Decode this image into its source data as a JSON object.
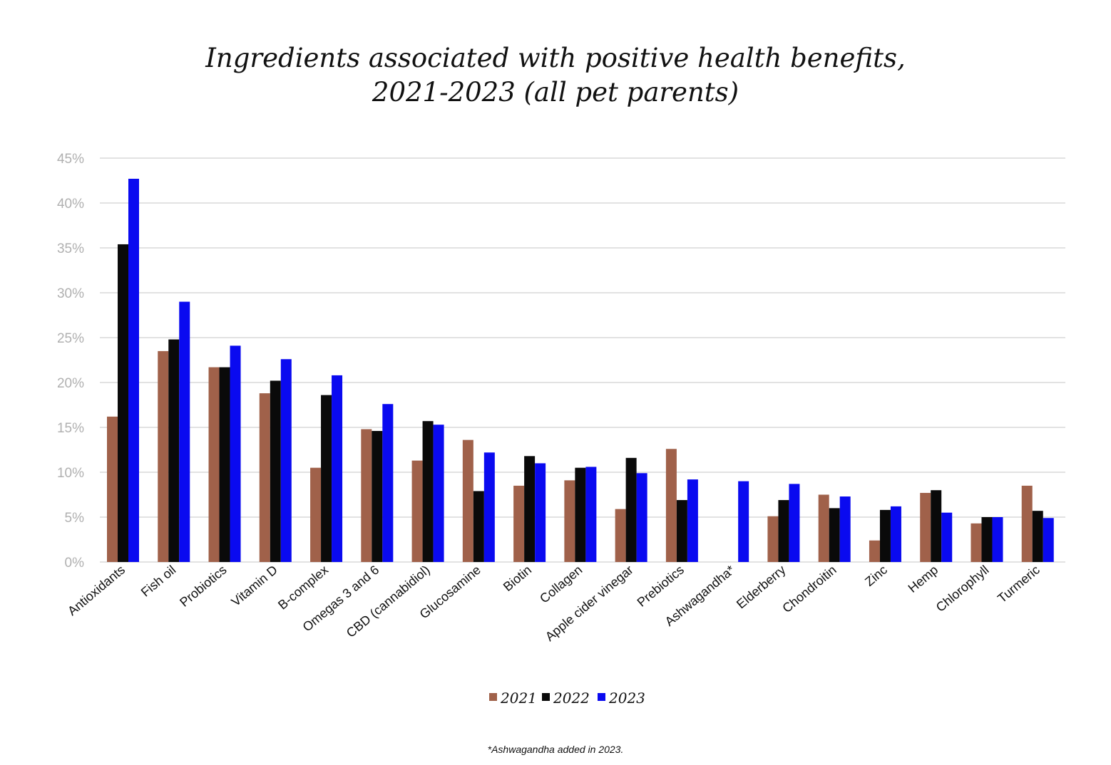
{
  "title": {
    "line1": "Ingredients associated with positive health benefits,",
    "line2": "2021-2023 (all pet parents)"
  },
  "footnote": "*Ashwagandha added in 2023.",
  "colors": {
    "s2021": "#a0614a",
    "s2022": "#0a0a0a",
    "s2023": "#0a0af0",
    "grid": "#d9d9d9",
    "tick": "#b0b0b0"
  },
  "chart_data": {
    "type": "bar",
    "title": "Ingredients associated with positive health benefits, 2021-2023 (all pet parents)",
    "ylim": [
      0,
      45
    ],
    "yticks": [
      "0%",
      "5%",
      "10%",
      "15%",
      "20%",
      "25%",
      "30%",
      "35%",
      "40%",
      "45%"
    ],
    "grid": true,
    "legend_position": "bottom",
    "categories": [
      "Antioxidants",
      "Fish oil",
      "Probiotics",
      "Vitamin D",
      "B-complex",
      "Omegas 3 and 6",
      "CBD (cannabidiol)",
      "Glucosamine",
      "Biotin",
      "Collagen",
      "Apple cider vinegar",
      "Prebiotics",
      "Ashwagandha*",
      "Elderberry",
      "Chondroitin",
      "Zinc",
      "Hemp",
      "Chlorophyll",
      "Turmeric"
    ],
    "series": [
      {
        "name": "2021",
        "color": "#a0614a",
        "values": [
          16.2,
          23.5,
          21.7,
          18.8,
          10.5,
          14.8,
          11.3,
          13.6,
          8.5,
          9.1,
          5.9,
          12.6,
          null,
          5.1,
          7.5,
          2.4,
          7.7,
          4.3,
          8.5
        ]
      },
      {
        "name": "2022",
        "color": "#0a0a0a",
        "values": [
          35.4,
          24.8,
          21.7,
          20.2,
          18.6,
          14.6,
          15.7,
          7.9,
          11.8,
          10.5,
          11.6,
          6.9,
          null,
          6.9,
          6.0,
          5.8,
          8.0,
          5.0,
          5.7
        ]
      },
      {
        "name": "2023",
        "color": "#0a0af0",
        "values": [
          42.7,
          29.0,
          24.1,
          22.6,
          20.8,
          17.6,
          15.3,
          12.2,
          11.0,
          10.6,
          9.9,
          9.2,
          9.0,
          8.7,
          7.3,
          6.2,
          5.5,
          5.0,
          4.9
        ]
      }
    ]
  }
}
